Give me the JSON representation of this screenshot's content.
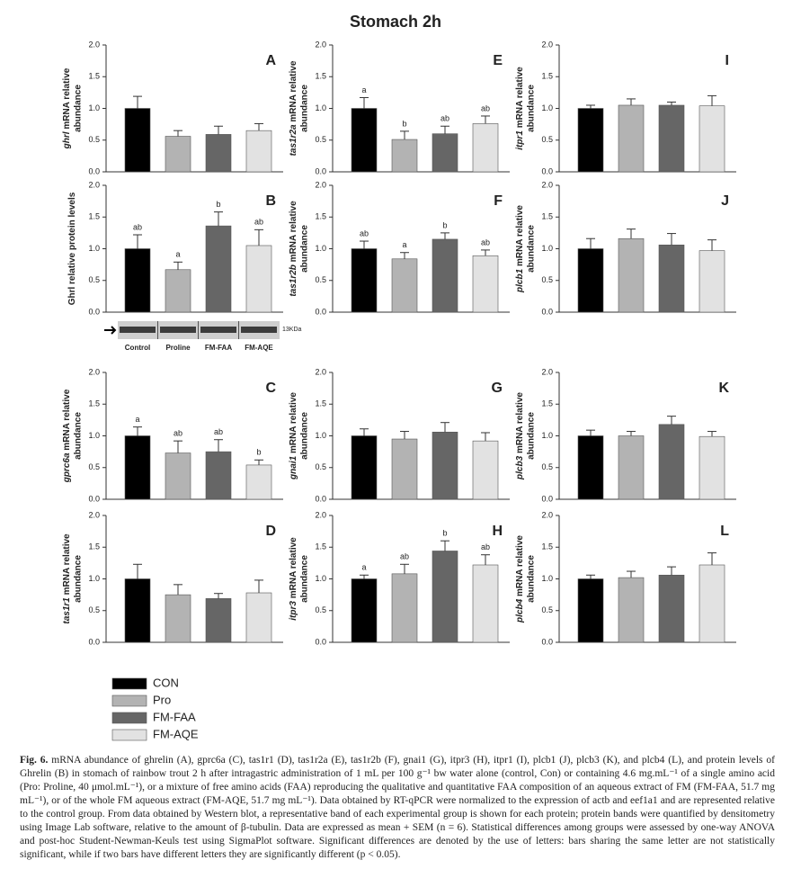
{
  "title": "Stomach 2h",
  "groups": [
    {
      "name": "CON",
      "color": "#000000"
    },
    {
      "name": "Pro",
      "color": "#b3b3b3"
    },
    {
      "name": "FM-FAA",
      "color": "#666666"
    },
    {
      "name": "FM-AQE",
      "color": "#e2e2e2"
    }
  ],
  "chart_data": [
    {
      "type": "bar",
      "panel": "A",
      "gene": "ghrl",
      "ylabel": [
        "mRNA relative",
        "abundance"
      ],
      "values": [
        1.0,
        0.56,
        0.59,
        0.65
      ],
      "errors": [
        0.19,
        0.09,
        0.13,
        0.11
      ],
      "ylim": [
        0,
        2
      ],
      "yticks": [
        {
          "value": 0,
          "label": "0.0"
        },
        {
          "value": 0.5,
          "label": "0.5"
        },
        {
          "value": 1,
          "label": "1.0"
        },
        {
          "value": 1.5,
          "label": "1.5"
        },
        {
          "value": 2,
          "label": "2.0"
        }
      ]
    },
    {
      "type": "bar",
      "panel": "E",
      "gene": "tas1r2a",
      "ylabel": [
        "mRNA relative",
        "abundance"
      ],
      "values": [
        1.0,
        0.51,
        0.6,
        0.76
      ],
      "errors": [
        0.17,
        0.13,
        0.12,
        0.12
      ],
      "letters": [
        "a",
        "b",
        "ab",
        "ab"
      ],
      "ylim": [
        0,
        2
      ],
      "yticks": [
        {
          "value": 0,
          "label": "0.0"
        },
        {
          "value": 0.5,
          "label": "0.5"
        },
        {
          "value": 1,
          "label": "1.0"
        },
        {
          "value": 1.5,
          "label": "1.5"
        },
        {
          "value": 2,
          "label": "2.0"
        }
      ]
    },
    {
      "type": "bar",
      "panel": "I",
      "gene": "itpr1",
      "ylabel": [
        "mRNA relative",
        "abundance"
      ],
      "values": [
        1.0,
        1.05,
        1.05,
        1.04
      ],
      "errors": [
        0.05,
        0.1,
        0.05,
        0.16
      ],
      "ylim": [
        0,
        2
      ],
      "yticks": [
        {
          "value": 0,
          "label": "0.0"
        },
        {
          "value": 0.5,
          "label": "0.5"
        },
        {
          "value": 1,
          "label": "1.0"
        },
        {
          "value": 1.5,
          "label": "1.5"
        },
        {
          "value": 2,
          "label": "2.0"
        }
      ]
    },
    {
      "type": "bar",
      "panel": "B",
      "ylabel": [
        "Ghrl relative protein levels"
      ],
      "values": [
        1.0,
        0.67,
        1.36,
        1.05
      ],
      "errors": [
        0.22,
        0.12,
        0.22,
        0.25
      ],
      "letters": [
        "ab",
        "a",
        "b",
        "ab"
      ],
      "blot": {
        "labels": [
          "Control",
          "Proline",
          "FM-FAA",
          "FM-AQE"
        ],
        "size": "13KDa"
      },
      "ylim": [
        0,
        2
      ],
      "yticks": [
        {
          "value": 0,
          "label": "0.0"
        },
        {
          "value": 0.5,
          "label": "0.5"
        },
        {
          "value": 1,
          "label": "1.0"
        },
        {
          "value": 1.5,
          "label": "1.5"
        },
        {
          "value": 2,
          "label": "2.0"
        }
      ]
    },
    {
      "type": "bar",
      "panel": "F",
      "gene": "tas1r2b",
      "ylabel": [
        "mRNA relative",
        "abundance"
      ],
      "values": [
        1.0,
        0.84,
        1.15,
        0.89
      ],
      "errors": [
        0.12,
        0.1,
        0.1,
        0.09
      ],
      "letters": [
        "ab",
        "a",
        "b",
        "ab"
      ],
      "ylim": [
        0,
        2
      ],
      "yticks": [
        {
          "value": 0,
          "label": "0.0"
        },
        {
          "value": 0.5,
          "label": "0.5"
        },
        {
          "value": 1,
          "label": "1.0"
        },
        {
          "value": 1.5,
          "label": "1.5"
        },
        {
          "value": 2,
          "label": "2.0"
        }
      ]
    },
    {
      "type": "bar",
      "panel": "J",
      "gene": "plcb1",
      "ylabel": [
        "mRNA relative",
        "abundance"
      ],
      "values": [
        1.0,
        1.16,
        1.06,
        0.97
      ],
      "errors": [
        0.16,
        0.15,
        0.18,
        0.17
      ],
      "ylim": [
        0,
        2
      ],
      "yticks": [
        {
          "value": 0,
          "label": "0.0"
        },
        {
          "value": 0.5,
          "label": "0.5"
        },
        {
          "value": 1,
          "label": "1.0"
        },
        {
          "value": 1.5,
          "label": "1.5"
        },
        {
          "value": 2,
          "label": "2.0"
        }
      ]
    },
    {
      "type": "bar",
      "panel": "C",
      "gene": "gprc6a",
      "ylabel": [
        "mRNA relative",
        "abundance"
      ],
      "values": [
        1.0,
        0.73,
        0.75,
        0.54
      ],
      "errors": [
        0.14,
        0.19,
        0.19,
        0.08
      ],
      "letters": [
        "a",
        "ab",
        "ab",
        "b"
      ],
      "ylim": [
        0,
        2
      ],
      "yticks": [
        {
          "value": 0,
          "label": "0.0"
        },
        {
          "value": 0.5,
          "label": "0.5"
        },
        {
          "value": 1,
          "label": "1.0"
        },
        {
          "value": 1.5,
          "label": "1.5"
        },
        {
          "value": 2,
          "label": "2.0"
        }
      ]
    },
    {
      "type": "bar",
      "panel": "G",
      "gene": "gnai1",
      "ylabel": [
        "mRNA relative",
        "abundance"
      ],
      "values": [
        1.0,
        0.95,
        1.06,
        0.92
      ],
      "errors": [
        0.11,
        0.12,
        0.15,
        0.13
      ],
      "ylim": [
        0,
        2
      ],
      "yticks": [
        {
          "value": 0,
          "label": "0.0"
        },
        {
          "value": 0.5,
          "label": "0.5"
        },
        {
          "value": 1,
          "label": "1.0"
        },
        {
          "value": 1.5,
          "label": "1.5"
        },
        {
          "value": 2,
          "label": "2.0"
        }
      ]
    },
    {
      "type": "bar",
      "panel": "K",
      "gene": "plcb3",
      "ylabel": [
        "mRNA relative",
        "abundance"
      ],
      "values": [
        1.0,
        1.0,
        1.18,
        0.99
      ],
      "errors": [
        0.09,
        0.07,
        0.13,
        0.08
      ],
      "ylim": [
        0,
        2
      ],
      "yticks": [
        {
          "value": 0,
          "label": "0.0"
        },
        {
          "value": 0.5,
          "label": "0.5"
        },
        {
          "value": 1,
          "label": "1.0"
        },
        {
          "value": 1.5,
          "label": "1.5"
        },
        {
          "value": 2,
          "label": "2.0"
        }
      ]
    },
    {
      "type": "bar",
      "panel": "D",
      "gene": "tas1r1",
      "ylabel": [
        "mRNA relative",
        "abundance"
      ],
      "values": [
        1.0,
        0.75,
        0.69,
        0.78
      ],
      "errors": [
        0.23,
        0.16,
        0.08,
        0.2
      ],
      "ylim": [
        0,
        2
      ],
      "yticks": [
        {
          "value": 0,
          "label": "0.0"
        },
        {
          "value": 0.5,
          "label": "0.5"
        },
        {
          "value": 1,
          "label": "1.0"
        },
        {
          "value": 1.5,
          "label": "1.5"
        },
        {
          "value": 2,
          "label": "2.0"
        }
      ]
    },
    {
      "type": "bar",
      "panel": "H",
      "gene": "itpr3",
      "ylabel": [
        "mRNA relative",
        "abundance"
      ],
      "values": [
        1.0,
        1.08,
        1.44,
        1.22
      ],
      "errors": [
        0.06,
        0.15,
        0.16,
        0.16
      ],
      "letters": [
        "a",
        "ab",
        "b",
        "ab"
      ],
      "ylim": [
        0,
        2
      ],
      "yticks": [
        {
          "value": 0,
          "label": "0.0"
        },
        {
          "value": 0.5,
          "label": "0.5"
        },
        {
          "value": 1,
          "label": "1.0"
        },
        {
          "value": 1.5,
          "label": "1.5"
        },
        {
          "value": 2,
          "label": "2.0"
        }
      ]
    },
    {
      "type": "bar",
      "panel": "L",
      "gene": "plcb4",
      "ylabel": [
        "mRNA relative",
        "abundance"
      ],
      "values": [
        1.0,
        1.02,
        1.06,
        1.22
      ],
      "errors": [
        0.06,
        0.1,
        0.13,
        0.19
      ],
      "ylim": [
        0,
        2
      ],
      "yticks": [
        {
          "value": 0,
          "label": "0.0"
        },
        {
          "value": 0.5,
          "label": "0.5"
        },
        {
          "value": 1,
          "label": "1.0"
        },
        {
          "value": 1.5,
          "label": "1.5"
        },
        {
          "value": 2,
          "label": "2.0"
        }
      ]
    }
  ],
  "caption": {
    "label": "Fig. 6.",
    "text": "mRNA abundance of ghrelin (A), gprc6a (C), tas1r1 (D), tas1r2a (E), tas1r2b (F), gnai1 (G), itpr3 (H), itpr1 (I), plcb1 (J), plcb3 (K), and plcb4 (L), and protein levels of Ghrelin (B) in stomach of rainbow trout 2 h after intragastric administration of 1 mL per 100 g⁻¹ bw water alone (control, Con) or containing 4.6 mg.mL⁻¹ of a single amino acid (Pro: Proline, 40 μmol.mL⁻¹), or a mixture of free amino acids (FAA) reproducing the qualitative and quantitative FAA composition of an aqueous extract of FM (FM-FAA, 51.7 mg mL⁻¹), or of the whole FM aqueous extract (FM-AQE, 51.7 mg mL⁻¹). Data obtained by RT-qPCR were normalized to the expression of actb and eef1a1 and are represented relative to the control group. From data obtained by Western blot, a representative band of each experimental group is shown for each protein; protein bands were quantified by densitometry using Image Lab software, relative to the amount of β-tubulin. Data are expressed as mean + SEM (n = 6). Statistical differences among groups were assessed by one-way ANOVA and post-hoc Student-Newman-Keuls test using SigmaPlot software. Significant differences are denoted by the use of letters: bars sharing the same letter are not statistically significant, while if two bars have different letters they are significantly different (p < 0.05)."
  }
}
